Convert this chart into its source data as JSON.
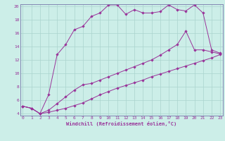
{
  "xlabel": "Windchill (Refroidissement éolien,°C)",
  "background_color": "#cceee8",
  "grid_color": "#aad4ce",
  "line_color": "#993399",
  "spine_color": "#7777aa",
  "xmin": 0,
  "xmax": 23,
  "ymin": 4,
  "ymax": 20,
  "yticks": [
    4,
    6,
    8,
    10,
    12,
    14,
    16,
    18,
    20
  ],
  "xticks": [
    0,
    1,
    2,
    3,
    4,
    5,
    6,
    7,
    8,
    9,
    10,
    11,
    12,
    13,
    14,
    15,
    16,
    17,
    18,
    19,
    20,
    21,
    22,
    23
  ],
  "series1_x": [
    0,
    1,
    2,
    3,
    4,
    5,
    6,
    7,
    8,
    9,
    10,
    11,
    12,
    13,
    14,
    15,
    16,
    17,
    18,
    19,
    20,
    21,
    22,
    23
  ],
  "series1_y": [
    5.1,
    4.8,
    4.0,
    4.2,
    4.5,
    4.8,
    5.2,
    5.6,
    6.2,
    6.8,
    7.3,
    7.8,
    8.2,
    8.6,
    9.0,
    9.5,
    9.9,
    10.3,
    10.7,
    11.1,
    11.5,
    11.9,
    12.3,
    12.8
  ],
  "series2_x": [
    0,
    1,
    2,
    3,
    4,
    5,
    6,
    7,
    8,
    9,
    10,
    11,
    12,
    13,
    14,
    15,
    16,
    17,
    18,
    19,
    20,
    21,
    22,
    23
  ],
  "series2_y": [
    5.1,
    4.8,
    4.0,
    4.5,
    5.5,
    6.5,
    7.5,
    8.3,
    8.5,
    9.0,
    9.5,
    10.0,
    10.5,
    11.0,
    11.5,
    12.0,
    12.7,
    13.5,
    14.3,
    16.3,
    13.5,
    13.5,
    13.2,
    12.9
  ],
  "series3_x": [
    0,
    1,
    2,
    3,
    4,
    5,
    6,
    7,
    8,
    9,
    10,
    11,
    12,
    13,
    14,
    15,
    16,
    17,
    18,
    19,
    20,
    21,
    22,
    23
  ],
  "series3_y": [
    5.1,
    4.8,
    4.0,
    6.8,
    12.8,
    14.3,
    16.5,
    17.0,
    18.5,
    19.0,
    20.2,
    20.2,
    18.8,
    19.5,
    19.0,
    19.0,
    19.2,
    20.2,
    19.5,
    19.3,
    20.2,
    19.0,
    13.5,
    13.0
  ]
}
